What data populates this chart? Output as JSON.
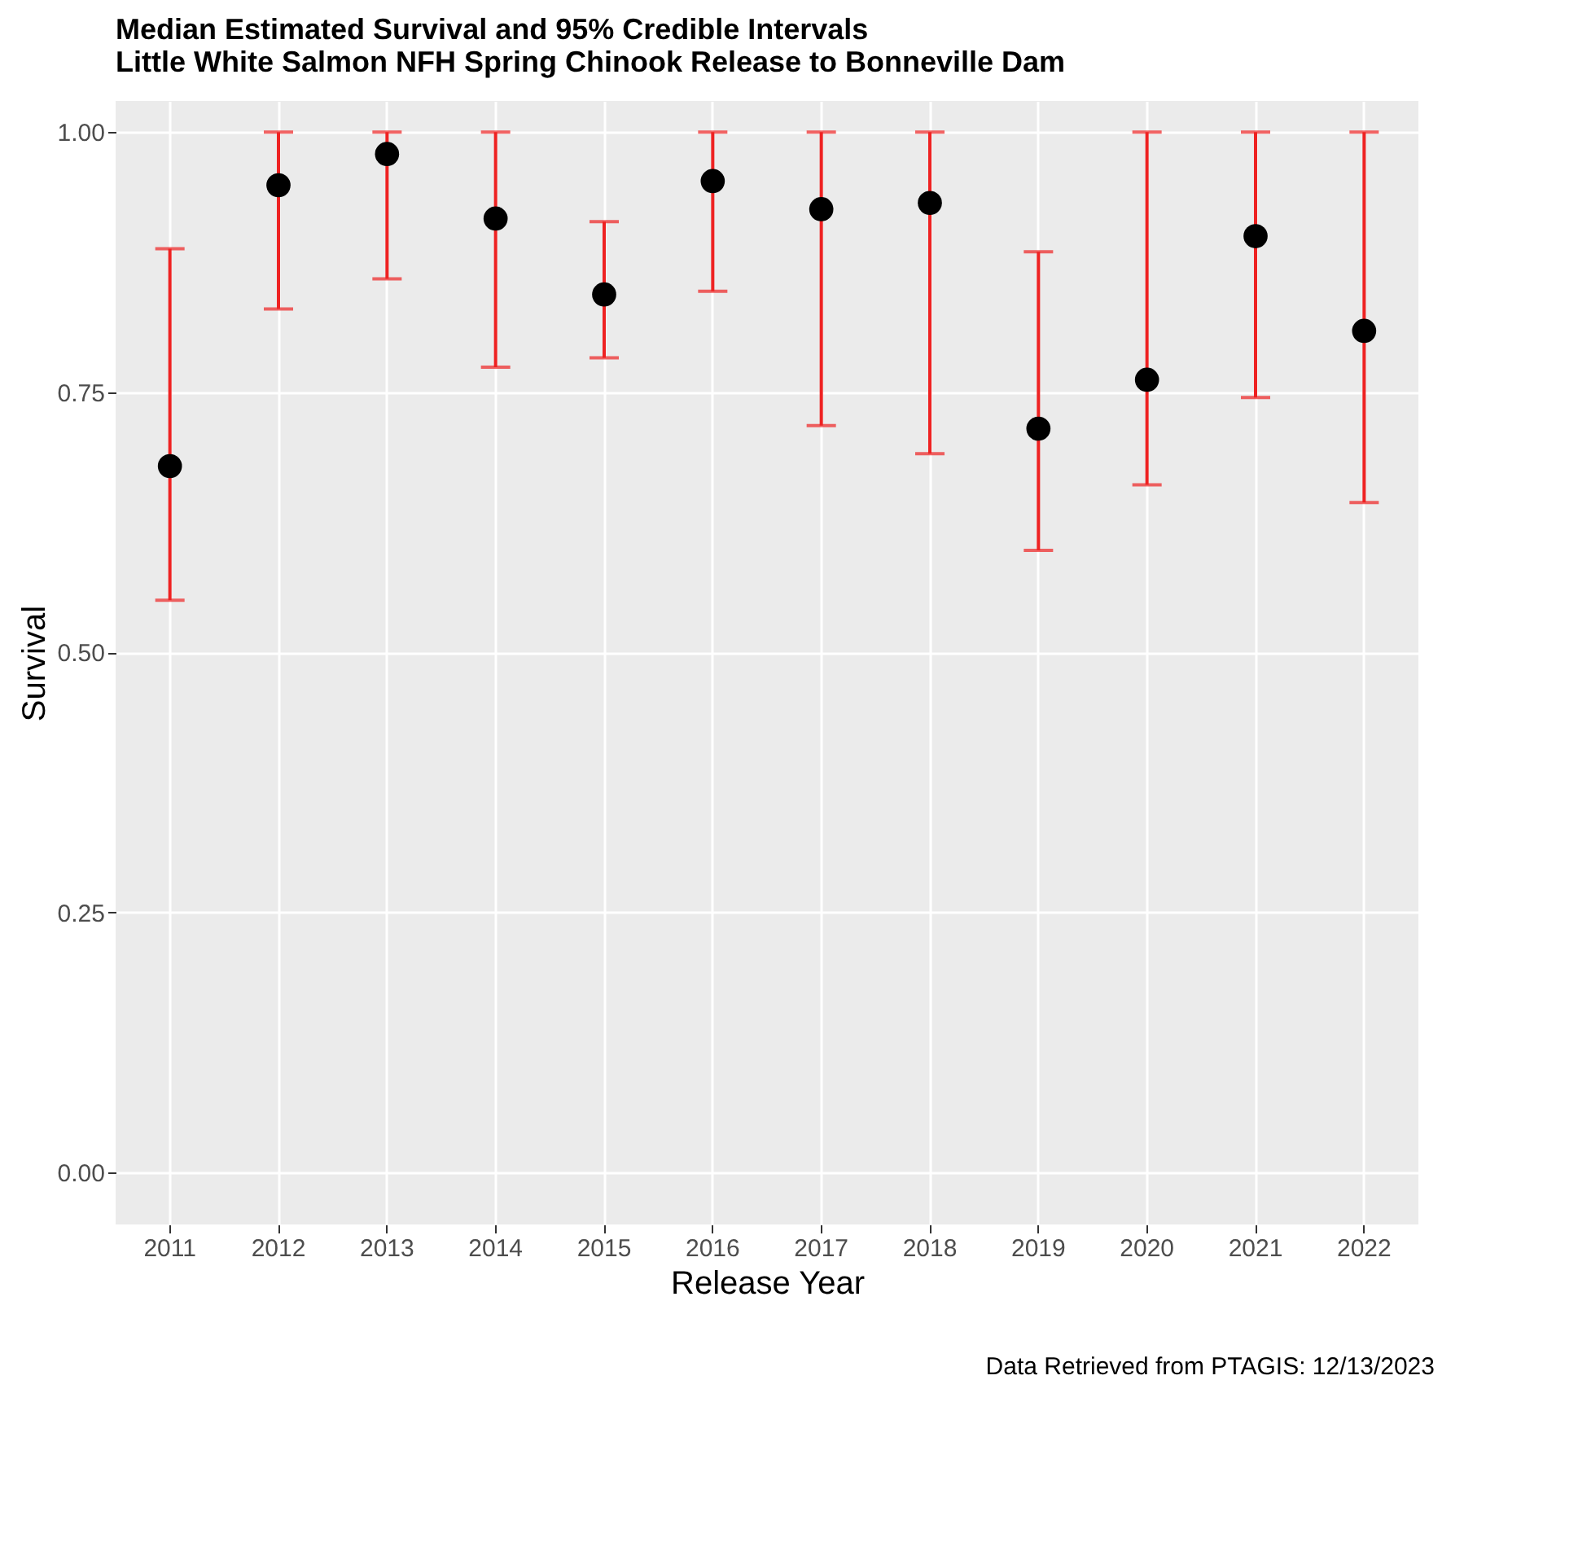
{
  "chart_data": {
    "type": "scatter",
    "title": "Median Estimated Survival and 95% Credible Intervals",
    "subtitle": "Little White Salmon NFH Spring Chinook Release to Bonneville Dam",
    "xlabel": "Release Year",
    "ylabel": "Survival",
    "categories": [
      "2011",
      "2012",
      "2013",
      "2014",
      "2015",
      "2016",
      "2017",
      "2018",
      "2019",
      "2020",
      "2021",
      "2022"
    ],
    "series": [
      {
        "color": "#000000",
        "values": [
          0.679,
          0.949,
          0.979,
          0.917,
          0.844,
          0.953,
          0.926,
          0.932,
          0.715,
          0.762,
          0.9,
          0.809
        ],
        "errors": [
          [
            0.55,
            0.888
          ],
          [
            0.83,
            1.0
          ],
          [
            0.859,
            1.0
          ],
          [
            0.774,
            1.0
          ],
          [
            0.783,
            0.914
          ],
          [
            0.847,
            1.0
          ],
          [
            0.718,
            1.0
          ],
          [
            0.691,
            1.0
          ],
          [
            0.598,
            0.885
          ],
          [
            0.661,
            1.0
          ],
          [
            0.745,
            1.0
          ],
          [
            0.644,
            1.0
          ]
        ]
      }
    ],
    "ylim": [
      -0.05,
      1.03
    ],
    "yticks": [
      {
        "value": 0,
        "label": "0.00"
      },
      {
        "value": 0.25,
        "label": "0.25"
      },
      {
        "value": 0.5,
        "label": "0.50"
      },
      {
        "value": 0.75,
        "label": "0.75"
      },
      {
        "value": 1,
        "label": "1.00"
      }
    ],
    "grid": true,
    "marker": "circle",
    "annotations": [
      "Data Retrieved from PTAGIS: 12/13/2023"
    ]
  }
}
